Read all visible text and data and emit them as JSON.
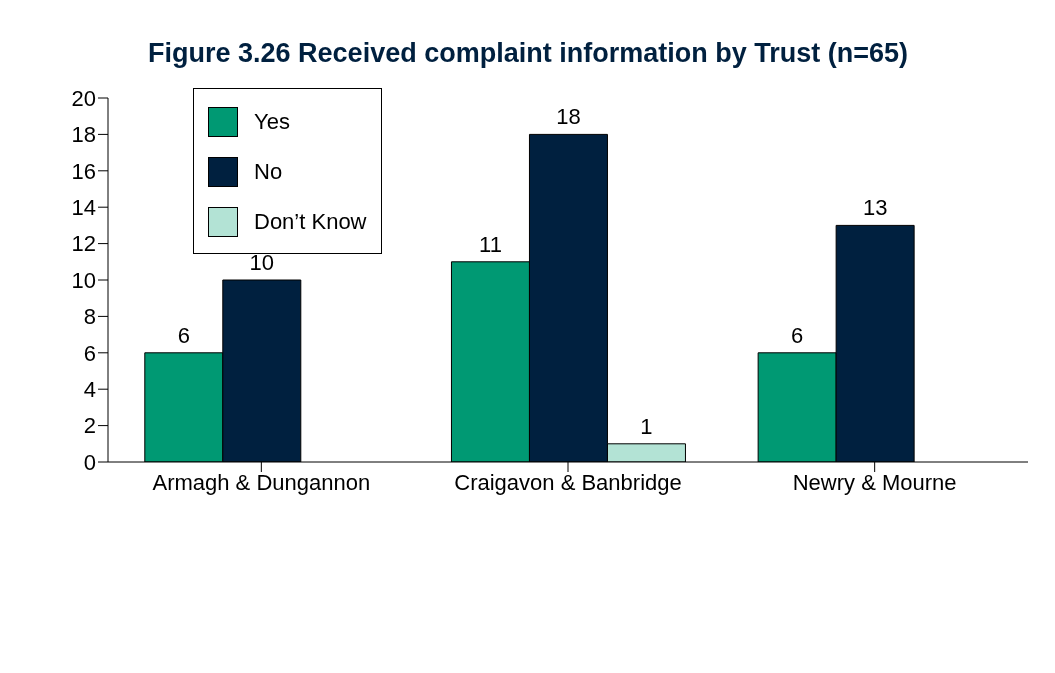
{
  "chart_data": {
    "type": "bar",
    "title": "Figure 3.26 Received complaint information by Trust (n=65)",
    "categories": [
      "Armagh & Dungannon",
      "Craigavon & Banbridge",
      "Newry & Mourne"
    ],
    "series": [
      {
        "name": "Yes",
        "color": "#009973",
        "values": [
          6,
          11,
          6
        ]
      },
      {
        "name": "No",
        "color": "#00203f",
        "values": [
          10,
          18,
          13
        ]
      },
      {
        "name": "Don’t Know",
        "color": "#b3e3d5",
        "values": [
          null,
          1,
          null
        ]
      }
    ],
    "ylim": [
      0,
      20
    ],
    "yticks": [
      0,
      2,
      4,
      6,
      8,
      10,
      12,
      14,
      16,
      18,
      20
    ],
    "grid": false,
    "legend": "top left",
    "data_labels": true
  }
}
